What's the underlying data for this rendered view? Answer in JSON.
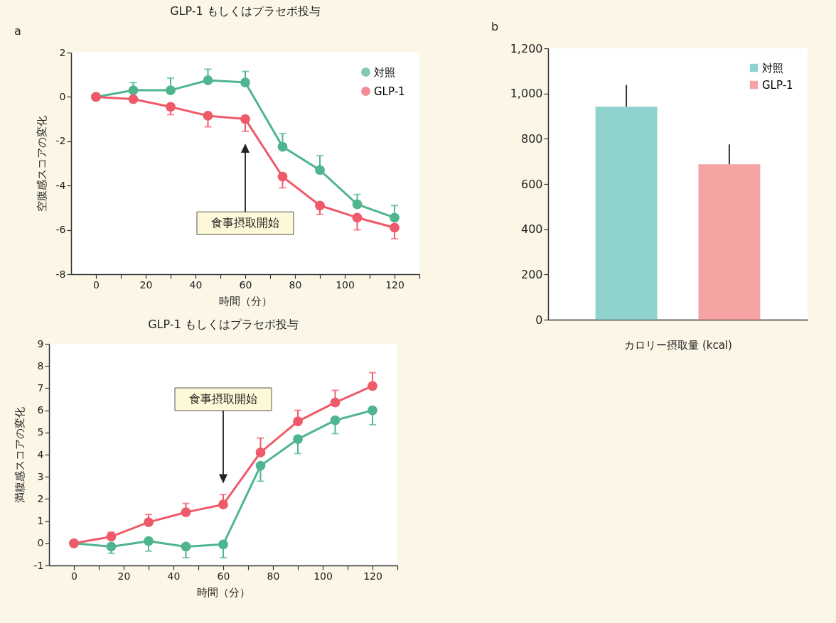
{
  "chart_data": [
    {
      "type": "line",
      "title": "GLP-1 もしくはプラセボ投与",
      "xlabel": "時間（分）",
      "ylabel": "空腹感スコアの変化",
      "x": [
        0,
        15,
        30,
        45,
        60,
        75,
        90,
        105,
        120
      ],
      "series": [
        {
          "name": "対照",
          "color": "#4fb58f",
          "values": [
            0,
            0.3,
            0.3,
            0.75,
            0.65,
            -2.25,
            -3.3,
            -4.85,
            -5.45
          ],
          "errors": [
            null,
            [
              0.3,
              0.65
            ],
            [
              0.3,
              0.85
            ],
            [
              0.75,
              1.25
            ],
            [
              0.65,
              1.15
            ],
            [
              -2.25,
              -1.65
            ],
            [
              -3.3,
              -2.65
            ],
            [
              -4.85,
              -4.4
            ],
            [
              -5.45,
              -4.9
            ]
          ]
        },
        {
          "name": "GLP-1",
          "color": "#ef5a6a",
          "values": [
            0,
            -0.1,
            -0.45,
            -0.85,
            -1,
            -3.6,
            -4.9,
            -5.45,
            -5.9
          ],
          "errors": [
            null,
            null,
            [
              -0.8,
              -0.45
            ],
            [
              -1.35,
              -0.85
            ],
            [
              -1.55,
              -1
            ],
            [
              -4.1,
              -3.6
            ],
            [
              -5.3,
              -4.9
            ],
            [
              -6,
              -5.45
            ],
            [
              -6.4,
              -5.9
            ]
          ]
        }
      ],
      "xlim": [
        -10,
        130
      ],
      "xticks": [
        0,
        {
          "value": 10,
          "label": null
        },
        20,
        {
          "value": 30,
          "label": null
        },
        40,
        {
          "value": 50,
          "label": null
        },
        60,
        {
          "value": 70,
          "label": null
        },
        80,
        {
          "value": 90,
          "label": null
        },
        100,
        {
          "value": 110,
          "label": null
        },
        120,
        {
          "value": 130,
          "label": null
        }
      ],
      "ylim": [
        -8,
        2
      ],
      "yticks": [
        -8,
        -6,
        -4,
        -2,
        0,
        2
      ],
      "annotations": [
        "a",
        "食事摂取開始"
      ],
      "legend": "top right",
      "grid": false,
      "marker": "circle",
      "line_style": "solid"
    },
    {
      "type": "line",
      "title": "GLP-1 もしくはプラセボ投与",
      "xlabel": "時間（分）",
      "ylabel": "満腹感スコアの変化",
      "x": [
        0,
        15,
        30,
        45,
        60,
        75,
        90,
        105,
        120
      ],
      "series": [
        {
          "color": "#4fb58f",
          "values": [
            0,
            -0.15,
            0.1,
            -0.15,
            -0.05,
            3.5,
            4.7,
            5.55,
            6
          ],
          "errors": [
            null,
            [
              -0.45,
              -0.15
            ],
            [
              -0.35,
              0.1
            ],
            [
              -0.65,
              -0.15
            ],
            [
              -0.65,
              -0.05
            ],
            [
              2.8,
              3.5
            ],
            [
              4.05,
              4.7
            ],
            [
              4.95,
              5.55
            ],
            [
              5.35,
              6
            ]
          ]
        },
        {
          "color": "#ef5a6a",
          "values": [
            0,
            0.3,
            0.95,
            1.4,
            1.75,
            4.1,
            5.5,
            6.35,
            7.1
          ],
          "errors": [
            null,
            [
              0.3,
              0.5
            ],
            [
              0.95,
              1.3
            ],
            [
              1.4,
              1.8
            ],
            [
              1.75,
              2.2
            ],
            [
              4.1,
              4.75
            ],
            [
              5.5,
              6
            ],
            [
              6.35,
              6.9
            ],
            [
              7.1,
              7.7
            ]
          ]
        }
      ],
      "xlim": [
        -10,
        130
      ],
      "xticks": [
        0,
        {
          "value": 10,
          "label": null
        },
        20,
        {
          "value": 30,
          "label": null
        },
        40,
        {
          "value": 50,
          "label": null
        },
        60,
        {
          "value": 70,
          "label": null
        },
        80,
        {
          "value": 90,
          "label": null
        },
        100,
        {
          "value": 110,
          "label": null
        },
        120,
        {
          "value": 130,
          "label": null
        }
      ],
      "ylim": [
        -1,
        9
      ],
      "yticks": [
        -1,
        0,
        1,
        2,
        3,
        4,
        5,
        6,
        7,
        8,
        9
      ],
      "annotations": [
        "食事摂取開始"
      ],
      "legend": false,
      "grid": false,
      "marker": "circle",
      "line_style": "solid"
    },
    {
      "type": "bar",
      "xlabel": "カロリー摂取量 (kcal)",
      "categories": [
        null
      ],
      "series": [
        {
          "name": "対照",
          "color": "#8fd3cf",
          "values": [
            942
          ],
          "errors": [
            [
              942,
              1038
            ]
          ]
        },
        {
          "name": "GLP-1",
          "color": "#f5a3a3",
          "values": [
            687
          ],
          "errors": [
            [
              687,
              775
            ]
          ]
        }
      ],
      "ylim": [
        0,
        1200
      ],
      "yticks": [
        0,
        200,
        400,
        600,
        {
          "value": 800,
          "label": "800"
        },
        {
          "value": 1000,
          "label": "1,000"
        },
        {
          "value": 1200,
          "label": "1,200"
        }
      ],
      "annotations": [
        "b"
      ],
      "legend": "top right",
      "grid": false
    }
  ]
}
